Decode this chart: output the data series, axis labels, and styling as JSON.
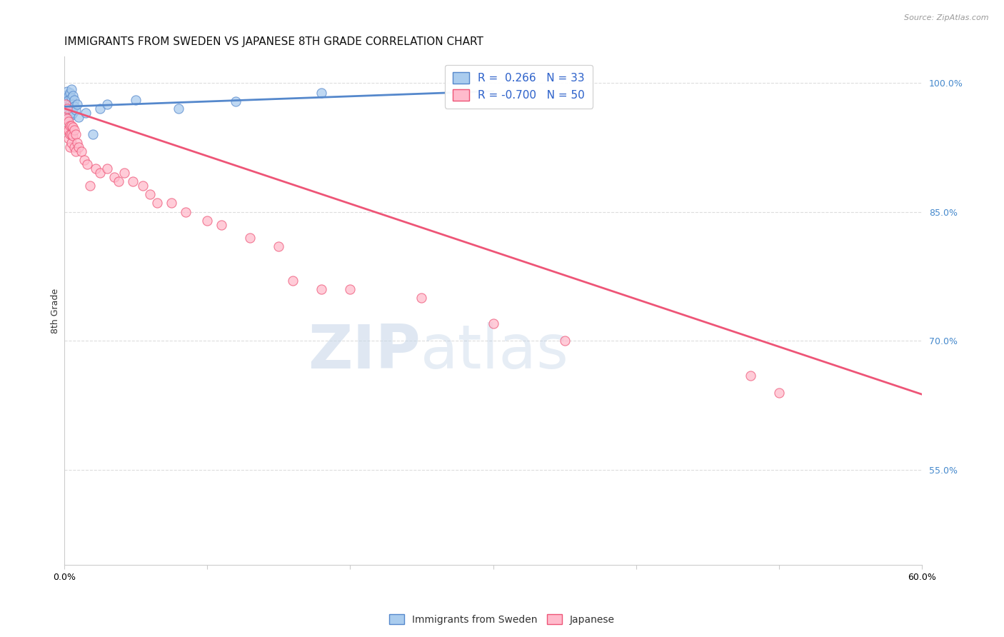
{
  "title": "IMMIGRANTS FROM SWEDEN VS JAPANESE 8TH GRADE CORRELATION CHART",
  "source": "Source: ZipAtlas.com",
  "ylabel": "8th Grade",
  "right_yticks": [
    "100.0%",
    "85.0%",
    "70.0%",
    "55.0%"
  ],
  "right_ytick_vals": [
    1.0,
    0.85,
    0.7,
    0.55
  ],
  "xlim": [
    0.0,
    0.6
  ],
  "ylim": [
    0.44,
    1.03
  ],
  "legend_blue_r": "0.266",
  "legend_blue_n": "33",
  "legend_pink_r": "-0.700",
  "legend_pink_n": "50",
  "blue_scatter_x": [
    0.001,
    0.001,
    0.002,
    0.002,
    0.002,
    0.003,
    0.003,
    0.003,
    0.003,
    0.004,
    0.004,
    0.004,
    0.005,
    0.005,
    0.005,
    0.005,
    0.006,
    0.006,
    0.006,
    0.007,
    0.007,
    0.008,
    0.009,
    0.01,
    0.015,
    0.02,
    0.025,
    0.03,
    0.05,
    0.08,
    0.12,
    0.18,
    0.28
  ],
  "blue_scatter_y": [
    0.975,
    0.985,
    0.99,
    0.978,
    0.968,
    0.985,
    0.98,
    0.97,
    0.96,
    0.988,
    0.975,
    0.965,
    0.992,
    0.982,
    0.972,
    0.962,
    0.985,
    0.975,
    0.965,
    0.98,
    0.972,
    0.968,
    0.975,
    0.96,
    0.965,
    0.94,
    0.97,
    0.975,
    0.98,
    0.97,
    0.978,
    0.988,
    0.992
  ],
  "pink_scatter_x": [
    0.001,
    0.001,
    0.002,
    0.002,
    0.002,
    0.003,
    0.003,
    0.003,
    0.004,
    0.004,
    0.004,
    0.005,
    0.005,
    0.005,
    0.006,
    0.006,
    0.007,
    0.007,
    0.008,
    0.008,
    0.009,
    0.01,
    0.012,
    0.014,
    0.016,
    0.018,
    0.022,
    0.025,
    0.03,
    0.035,
    0.038,
    0.042,
    0.048,
    0.055,
    0.06,
    0.065,
    0.075,
    0.085,
    0.1,
    0.11,
    0.13,
    0.15,
    0.16,
    0.18,
    0.2,
    0.25,
    0.3,
    0.35,
    0.48,
    0.5
  ],
  "pink_scatter_y": [
    0.975,
    0.96,
    0.97,
    0.958,
    0.945,
    0.955,
    0.945,
    0.935,
    0.95,
    0.94,
    0.925,
    0.95,
    0.94,
    0.93,
    0.948,
    0.938,
    0.945,
    0.925,
    0.94,
    0.92,
    0.93,
    0.925,
    0.92,
    0.91,
    0.905,
    0.88,
    0.9,
    0.895,
    0.9,
    0.89,
    0.885,
    0.895,
    0.885,
    0.88,
    0.87,
    0.86,
    0.86,
    0.85,
    0.84,
    0.835,
    0.82,
    0.81,
    0.77,
    0.76,
    0.76,
    0.75,
    0.72,
    0.7,
    0.66,
    0.64
  ],
  "blue_line_x": [
    0.0,
    0.3
  ],
  "blue_line_y": [
    0.972,
    0.99
  ],
  "pink_line_x": [
    0.0,
    0.6
  ],
  "pink_line_y": [
    0.97,
    0.638
  ],
  "grid_color": "#dddddd",
  "blue_color": "#5588cc",
  "pink_color": "#ee5577",
  "blue_fill": "#aaccee",
  "pink_fill": "#ffbbcc",
  "watermark_zip": "ZIP",
  "watermark_atlas": "atlas",
  "title_fontsize": 11,
  "axis_label_fontsize": 9,
  "tick_fontsize": 9,
  "source_fontsize": 8
}
